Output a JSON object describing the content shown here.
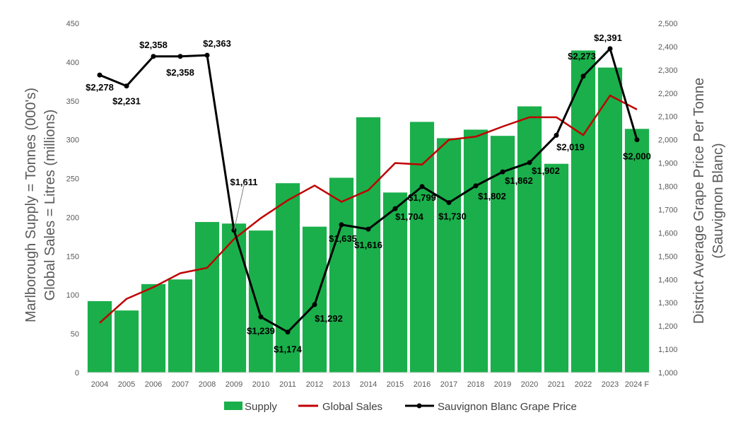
{
  "chart_data": {
    "type": "bar",
    "categories": [
      "2004",
      "2005",
      "2006",
      "2007",
      "2008",
      "2009",
      "2010",
      "2011",
      "2012",
      "2013",
      "2014",
      "2015",
      "2016",
      "2017",
      "2018",
      "2019",
      "2020",
      "2021",
      "2022",
      "2023",
      "2024 F"
    ],
    "series": [
      {
        "name": "Supply",
        "type": "bar",
        "axis": "left",
        "color": "#1aaf4b",
        "values": [
          92,
          80,
          114,
          120,
          194,
          192,
          183,
          244,
          188,
          251,
          329,
          232,
          323,
          302,
          313,
          305,
          343,
          269,
          415,
          393,
          314
        ]
      },
      {
        "name": "Global Sales",
        "type": "line",
        "axis": "left",
        "color": "#c00000",
        "values": [
          64,
          95,
          110,
          128,
          135,
          172,
          199,
          222,
          241,
          220,
          235,
          270,
          268,
          300,
          304,
          317,
          329,
          329,
          306,
          357,
          339
        ]
      },
      {
        "name": "Sauvignon Blanc Grape Price",
        "type": "line",
        "axis": "right",
        "color": "#000000",
        "values": [
          2278,
          2231,
          2358,
          2358,
          2363,
          1611,
          1239,
          1174,
          1292,
          1635,
          1616,
          1704,
          1799,
          1730,
          1802,
          1862,
          1902,
          2019,
          2273,
          2391,
          2000
        ]
      }
    ],
    "price_labels": [
      "$2,278",
      "$2,231",
      "$2,358",
      "$2,358",
      "$2,363",
      "$1,611",
      "$1,239",
      "$1,174",
      "$1,292",
      "$1,635",
      "$1,616",
      "$1,704",
      "$1,799",
      "$1,730",
      "$1,802",
      "$1,862",
      "$1,902",
      "$2,019",
      "$2,273",
      "$2,391",
      "$2,000"
    ],
    "ylabel_line1": "Marlborough Supply = Tonnes (000's)",
    "ylabel_line2": "Global Sales = Litres (millions)",
    "y2label_line1": "District Average Grape Price Per Tonne",
    "y2label_line2": "(Sauvignon Blanc)",
    "ylim": [
      0,
      450
    ],
    "y_ticks": [
      "0",
      "50",
      "100",
      "150",
      "200",
      "250",
      "300",
      "350",
      "400",
      "450"
    ],
    "y2lim": [
      1000,
      2500
    ],
    "y2_ticks": [
      "1,000",
      "1,100",
      "1,200",
      "1,300",
      "1,400",
      "1,500",
      "1,600",
      "1,700",
      "1,800",
      "1,900",
      "2,000",
      "2,100",
      "2,200",
      "2,300",
      "2,400",
      "2,500"
    ],
    "legend": [
      "Supply",
      "Global Sales",
      "Sauvignon Blanc Grape Price"
    ],
    "legend_position": "bottom",
    "grid": false
  },
  "colors": {
    "supply": "#1aaf4b",
    "sales": "#c00000",
    "price": "#000000",
    "axis_text": "#595959"
  }
}
